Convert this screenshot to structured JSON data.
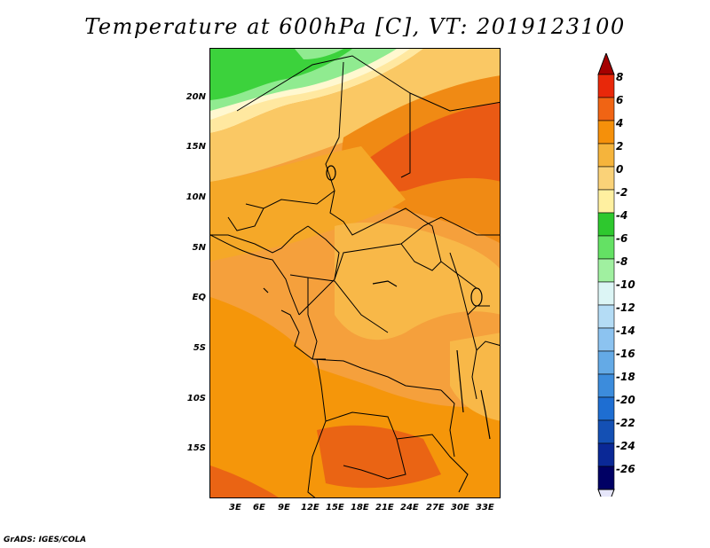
{
  "title": "Temperature at 600hPa [C], VT: 2019123100",
  "credit": "GrADS: IGES/COLA",
  "x_ticks": [
    "3E",
    "6E",
    "9E",
    "12E",
    "15E",
    "18E",
    "21E",
    "24E",
    "27E",
    "30E",
    "33E"
  ],
  "y_ticks": [
    "20N",
    "15N",
    "10N",
    "5N",
    "EQ",
    "5S",
    "10S",
    "15S"
  ],
  "colorbar": {
    "labels": [
      "8",
      "6",
      "4",
      "2",
      "0",
      "-2",
      "-4",
      "-6",
      "-8",
      "-10",
      "-12",
      "-14",
      "-16",
      "-18",
      "-20",
      "-22",
      "-24",
      "-26"
    ],
    "colors": [
      "#a50000",
      "#e8280a",
      "#f06414",
      "#f5900a",
      "#f5b43c",
      "#fad278",
      "#fff0a0",
      "#2ec82e",
      "#64e164",
      "#a0f0a0",
      "#dcf5f5",
      "#b4dcf5",
      "#8cc3f0",
      "#64aae6",
      "#3c8cdc",
      "#1e6ed2",
      "#1450b4",
      "#0a2896",
      "#000064",
      "#e6e6fa"
    ]
  }
}
